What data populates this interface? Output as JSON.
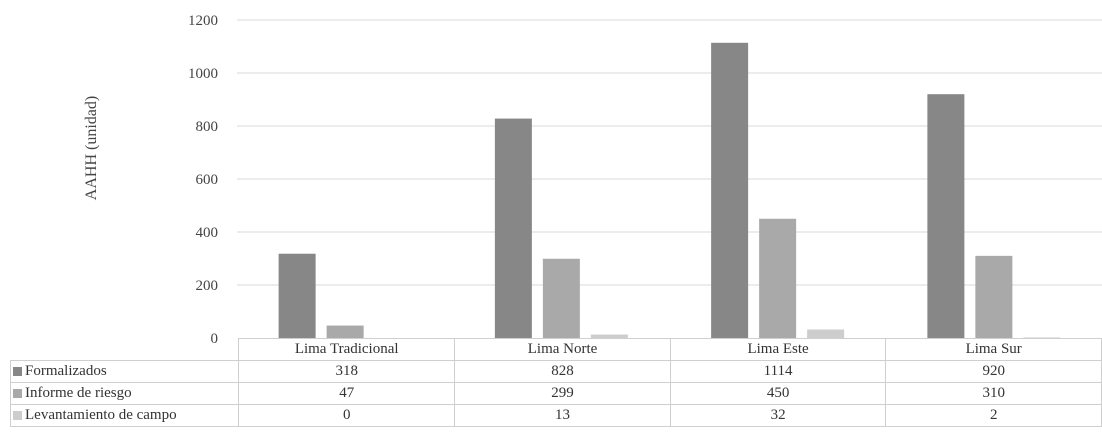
{
  "chart_data": {
    "type": "bar",
    "title": "",
    "xlabel": "",
    "ylabel": "AAHH (unidad)",
    "ylim": [
      0,
      1200
    ],
    "yticks": [
      0,
      200,
      400,
      600,
      800,
      1000,
      1200
    ],
    "grid": true,
    "legend": "table-left",
    "categories": [
      "Lima Tradicional",
      "Lima Norte",
      "Lima Este",
      "Lima Sur"
    ],
    "series": [
      {
        "name": "Formalizados",
        "values": [
          318,
          828,
          1114,
          920
        ],
        "color": "#878787"
      },
      {
        "name": "Informe de riesgo",
        "values": [
          47,
          299,
          450,
          310
        ],
        "color": "#a9a9a9"
      },
      {
        "name": "Levantamiento de campo",
        "values": [
          0,
          13,
          32,
          2
        ],
        "color": "#cdcdcd"
      }
    ]
  }
}
